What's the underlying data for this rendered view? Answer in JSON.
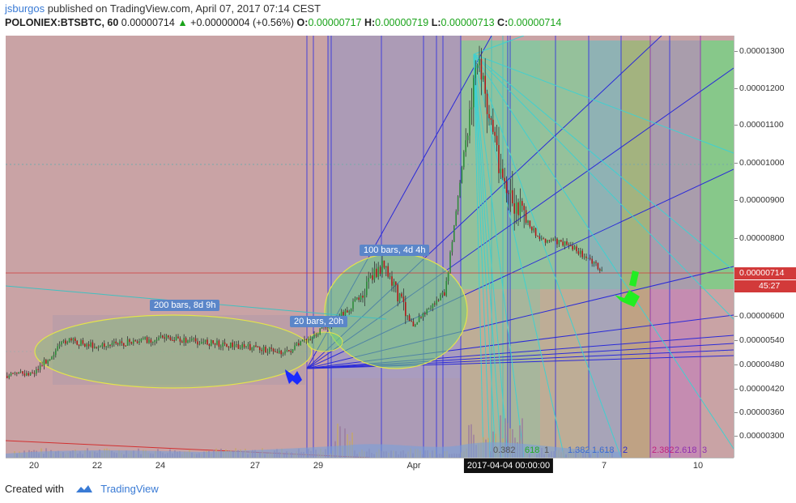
{
  "header": {
    "user": "jsburgos",
    "published": "published on TradingView.com, April 07, 2017 07:14 CEST",
    "symbol": "POLONIEX:BTSBTC, 60",
    "last": "0.00000714",
    "change": "+0.00000004 (+0.56%)",
    "o_label": "O:",
    "o": "0.00000717",
    "h_label": "H:",
    "h": "0.00000719",
    "l_label": "L:",
    "l": "0.00000713",
    "c_label": "C:",
    "c": "0.00000714"
  },
  "annotations": {
    "range_200": "200 bars, 8d 9h",
    "range_20": "20 bars, 20h",
    "range_100": "100 bars, 4d 4h",
    "fib_left": "0.382",
    "fib_left2": "618",
    "fib_left3": "1",
    "fib_mid": "1.382",
    "fib_mid2": "1.618",
    "fib_mid3": "2",
    "fib_right": "2.382",
    "fib_right2": "2.618",
    "fib_right3": "3"
  },
  "price_tag": "0.00000714",
  "timer_tag": "45:27",
  "footer": {
    "created": "Created with",
    "brand": "TradingView"
  },
  "chart_data": {
    "type": "candlestick",
    "symbol": "POLONIEX:BTSBTC",
    "interval": "60",
    "y_ticks": [
      "0.00001300",
      "0.00001200",
      "0.00001100",
      "0.00001000",
      "0.00000900",
      "0.00000800",
      "0.00000600",
      "0.00000540",
      "0.00000480",
      "0.00000420",
      "0.00000360",
      "0.00000300"
    ],
    "y_range": [
      2.6e-06,
      1.34e-05
    ],
    "x_ticks": [
      "20",
      "22",
      "24",
      "27",
      "29",
      "Apr",
      "7",
      "10"
    ],
    "x_highlight": "2017-04-04 00:00:00",
    "approx_close_path": [
      {
        "x": "2017-03-19",
        "y": 4.5e-06
      },
      {
        "x": "2017-03-20",
        "y": 4.62e-06
      },
      {
        "x": "2017-03-21",
        "y": 5.4e-06
      },
      {
        "x": "2017-03-22",
        "y": 5.25e-06
      },
      {
        "x": "2017-03-24",
        "y": 5.45e-06
      },
      {
        "x": "2017-03-26",
        "y": 5.3e-06
      },
      {
        "x": "2017-03-28",
        "y": 5.1e-06
      },
      {
        "x": "2017-03-29",
        "y": 5.6e-06
      },
      {
        "x": "2017-03-30",
        "y": 6.2e-06
      },
      {
        "x": "2017-03-31",
        "y": 7.3e-06
      },
      {
        "x": "2017-04-01",
        "y": 5.8e-06
      },
      {
        "x": "2017-04-02",
        "y": 6.6e-06
      },
      {
        "x": "2017-04-03",
        "y": 1.28e-05
      },
      {
        "x": "2017-04-04",
        "y": 9e-06
      },
      {
        "x": "2017-04-05",
        "y": 8e-06
      },
      {
        "x": "2017-04-06",
        "y": 7.8e-06
      },
      {
        "x": "2017-04-07",
        "y": 7.14e-06
      }
    ],
    "last_price": 7.14e-06
  }
}
